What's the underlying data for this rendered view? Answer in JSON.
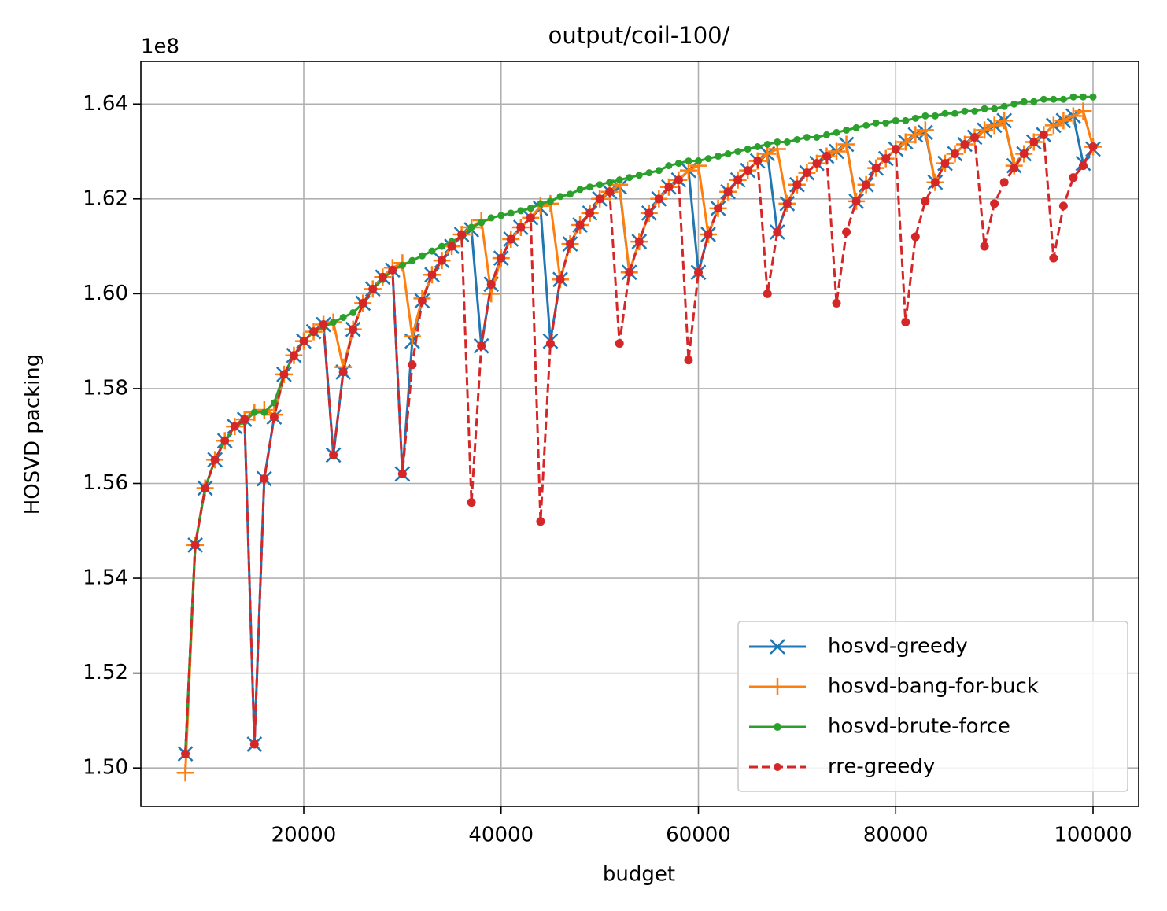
{
  "chart_data": {
    "type": "line",
    "title": "output/coil-100/",
    "x_label": "budget",
    "y_label": "HOSVD packing",
    "y_offset_label": "1e8",
    "x": [
      8000,
      9000,
      10000,
      11000,
      12000,
      13000,
      14000,
      15000,
      16000,
      17000,
      18000,
      19000,
      20000,
      21000,
      22000,
      23000,
      24000,
      25000,
      26000,
      27000,
      28000,
      29000,
      30000,
      31000,
      32000,
      33000,
      34000,
      35000,
      36000,
      37000,
      38000,
      39000,
      40000,
      41000,
      42000,
      43000,
      44000,
      45000,
      46000,
      47000,
      48000,
      49000,
      50000,
      51000,
      52000,
      53000,
      54000,
      55000,
      56000,
      57000,
      58000,
      59000,
      60000,
      61000,
      62000,
      63000,
      64000,
      65000,
      66000,
      67000,
      68000,
      69000,
      70000,
      71000,
      72000,
      73000,
      74000,
      75000,
      76000,
      77000,
      78000,
      79000,
      80000,
      81000,
      82000,
      83000,
      84000,
      85000,
      86000,
      87000,
      88000,
      89000,
      90000,
      91000,
      92000,
      93000,
      94000,
      95000,
      96000,
      97000,
      98000,
      99000,
      100000
    ],
    "series": [
      {
        "name": "hosvd-greedy",
        "color": "#1f77b4",
        "marker": "x",
        "linestyle": "solid",
        "values": [
          1.503,
          1.547,
          1.559,
          1.565,
          1.569,
          1.572,
          1.5735,
          1.505,
          1.561,
          1.574,
          1.583,
          1.587,
          1.59,
          1.592,
          1.5935,
          1.566,
          1.5835,
          1.5925,
          1.598,
          1.601,
          1.6035,
          1.605,
          1.562,
          1.59,
          1.5985,
          1.604,
          1.607,
          1.61,
          1.6125,
          1.6135,
          1.589,
          1.602,
          1.6075,
          1.6115,
          1.614,
          1.616,
          1.618,
          1.59,
          1.603,
          1.6105,
          1.6145,
          1.617,
          1.62,
          1.6215,
          1.6225,
          1.6045,
          1.611,
          1.617,
          1.62,
          1.6225,
          1.624,
          1.626,
          1.6045,
          1.6125,
          1.618,
          1.6215,
          1.624,
          1.626,
          1.628,
          1.6295,
          1.613,
          1.619,
          1.623,
          1.6255,
          1.6275,
          1.629,
          1.63,
          1.6315,
          1.6195,
          1.623,
          1.6265,
          1.6285,
          1.6305,
          1.632,
          1.6335,
          1.634,
          1.6235,
          1.6275,
          1.6295,
          1.6315,
          1.633,
          1.6345,
          1.6355,
          1.6365,
          1.627,
          1.6295,
          1.632,
          1.6335,
          1.6355,
          1.6365,
          1.6375,
          1.6275,
          1.6305
        ]
      },
      {
        "name": "hosvd-bang-for-buck",
        "color": "#ff7f0e",
        "marker": "+",
        "linestyle": "solid",
        "values": [
          1.499,
          1.547,
          1.559,
          1.565,
          1.569,
          1.572,
          1.5735,
          1.575,
          1.5755,
          1.5745,
          1.583,
          1.587,
          1.59,
          1.592,
          1.5935,
          1.594,
          1.5845,
          1.5925,
          1.598,
          1.601,
          1.6035,
          1.6055,
          1.6065,
          1.591,
          1.599,
          1.604,
          1.607,
          1.61,
          1.6125,
          1.614,
          1.6155,
          1.6,
          1.6075,
          1.6115,
          1.614,
          1.616,
          1.6185,
          1.619,
          1.603,
          1.6105,
          1.6145,
          1.617,
          1.62,
          1.6215,
          1.623,
          1.6045,
          1.611,
          1.617,
          1.62,
          1.6225,
          1.624,
          1.626,
          1.627,
          1.6125,
          1.618,
          1.6215,
          1.624,
          1.626,
          1.628,
          1.6295,
          1.6305,
          1.619,
          1.623,
          1.6255,
          1.6275,
          1.629,
          1.63,
          1.6315,
          1.6195,
          1.623,
          1.6265,
          1.6285,
          1.6305,
          1.632,
          1.6335,
          1.6345,
          1.6235,
          1.6275,
          1.6295,
          1.6315,
          1.633,
          1.6345,
          1.6355,
          1.6365,
          1.627,
          1.6295,
          1.632,
          1.6335,
          1.6355,
          1.6365,
          1.6375,
          1.6385,
          1.631
        ]
      },
      {
        "name": "hosvd-brute-force",
        "color": "#2ca02c",
        "marker": "o",
        "linestyle": "solid",
        "values": [
          1.503,
          1.547,
          1.559,
          1.565,
          1.569,
          1.572,
          1.573,
          1.575,
          1.575,
          1.577,
          1.583,
          1.587,
          1.59,
          1.592,
          1.593,
          1.594,
          1.595,
          1.596,
          1.598,
          1.601,
          1.603,
          1.605,
          1.606,
          1.607,
          1.608,
          1.609,
          1.61,
          1.611,
          1.612,
          1.614,
          1.615,
          1.616,
          1.6165,
          1.617,
          1.6175,
          1.618,
          1.619,
          1.6195,
          1.6205,
          1.621,
          1.622,
          1.6225,
          1.623,
          1.6235,
          1.624,
          1.6245,
          1.625,
          1.6255,
          1.626,
          1.627,
          1.6275,
          1.628,
          1.628,
          1.6285,
          1.629,
          1.6295,
          1.63,
          1.6305,
          1.631,
          1.6315,
          1.632,
          1.632,
          1.6325,
          1.633,
          1.633,
          1.6335,
          1.634,
          1.6345,
          1.635,
          1.6355,
          1.636,
          1.636,
          1.6365,
          1.6365,
          1.637,
          1.6375,
          1.6375,
          1.638,
          1.638,
          1.6385,
          1.6385,
          1.639,
          1.639,
          1.6395,
          1.64,
          1.6405,
          1.6405,
          1.641,
          1.641,
          1.641,
          1.6415,
          1.6415,
          1.6415
        ]
      },
      {
        "name": "rre-greedy",
        "color": "#d62728",
        "marker": "o",
        "linestyle": "dashed",
        "values": [
          1.503,
          1.547,
          1.559,
          1.565,
          1.569,
          1.572,
          1.5735,
          1.505,
          1.561,
          1.574,
          1.583,
          1.587,
          1.59,
          1.592,
          1.5935,
          1.566,
          1.5835,
          1.5925,
          1.598,
          1.601,
          1.6035,
          1.605,
          1.562,
          1.585,
          1.5985,
          1.604,
          1.607,
          1.61,
          1.6125,
          1.556,
          1.589,
          1.602,
          1.6075,
          1.6115,
          1.614,
          1.616,
          1.552,
          1.5895,
          1.603,
          1.6105,
          1.6145,
          1.617,
          1.62,
          1.6215,
          1.5895,
          1.6045,
          1.611,
          1.617,
          1.62,
          1.6225,
          1.624,
          1.586,
          1.6045,
          1.6125,
          1.618,
          1.6215,
          1.624,
          1.626,
          1.628,
          1.6,
          1.613,
          1.619,
          1.623,
          1.6255,
          1.6275,
          1.629,
          1.598,
          1.613,
          1.6195,
          1.623,
          1.6265,
          1.6285,
          1.6305,
          1.594,
          1.612,
          1.6195,
          1.6235,
          1.6275,
          1.6295,
          1.6315,
          1.633,
          1.61,
          1.619,
          1.6235,
          1.6265,
          1.6295,
          1.632,
          1.6335,
          1.6075,
          1.6185,
          1.6245,
          1.627,
          1.631
        ]
      }
    ],
    "xlim": [
      3489,
      104626
    ],
    "ylim": [
      1.4919,
      1.649
    ],
    "xticks": [
      20000,
      40000,
      60000,
      80000,
      100000
    ],
    "yticks": [
      {
        "value": 1.5,
        "label": "1.50"
      },
      {
        "value": 1.52,
        "label": "1.52"
      },
      {
        "value": 1.54,
        "label": "1.54"
      },
      {
        "value": 1.56,
        "label": "1.56"
      },
      {
        "value": 1.58,
        "label": "1.58"
      },
      {
        "value": 1.6,
        "label": "1.60"
      },
      {
        "value": 1.62,
        "label": "1.62"
      },
      {
        "value": 1.64,
        "label": "1.64"
      }
    ],
    "grid": true,
    "legend": "lower right"
  }
}
